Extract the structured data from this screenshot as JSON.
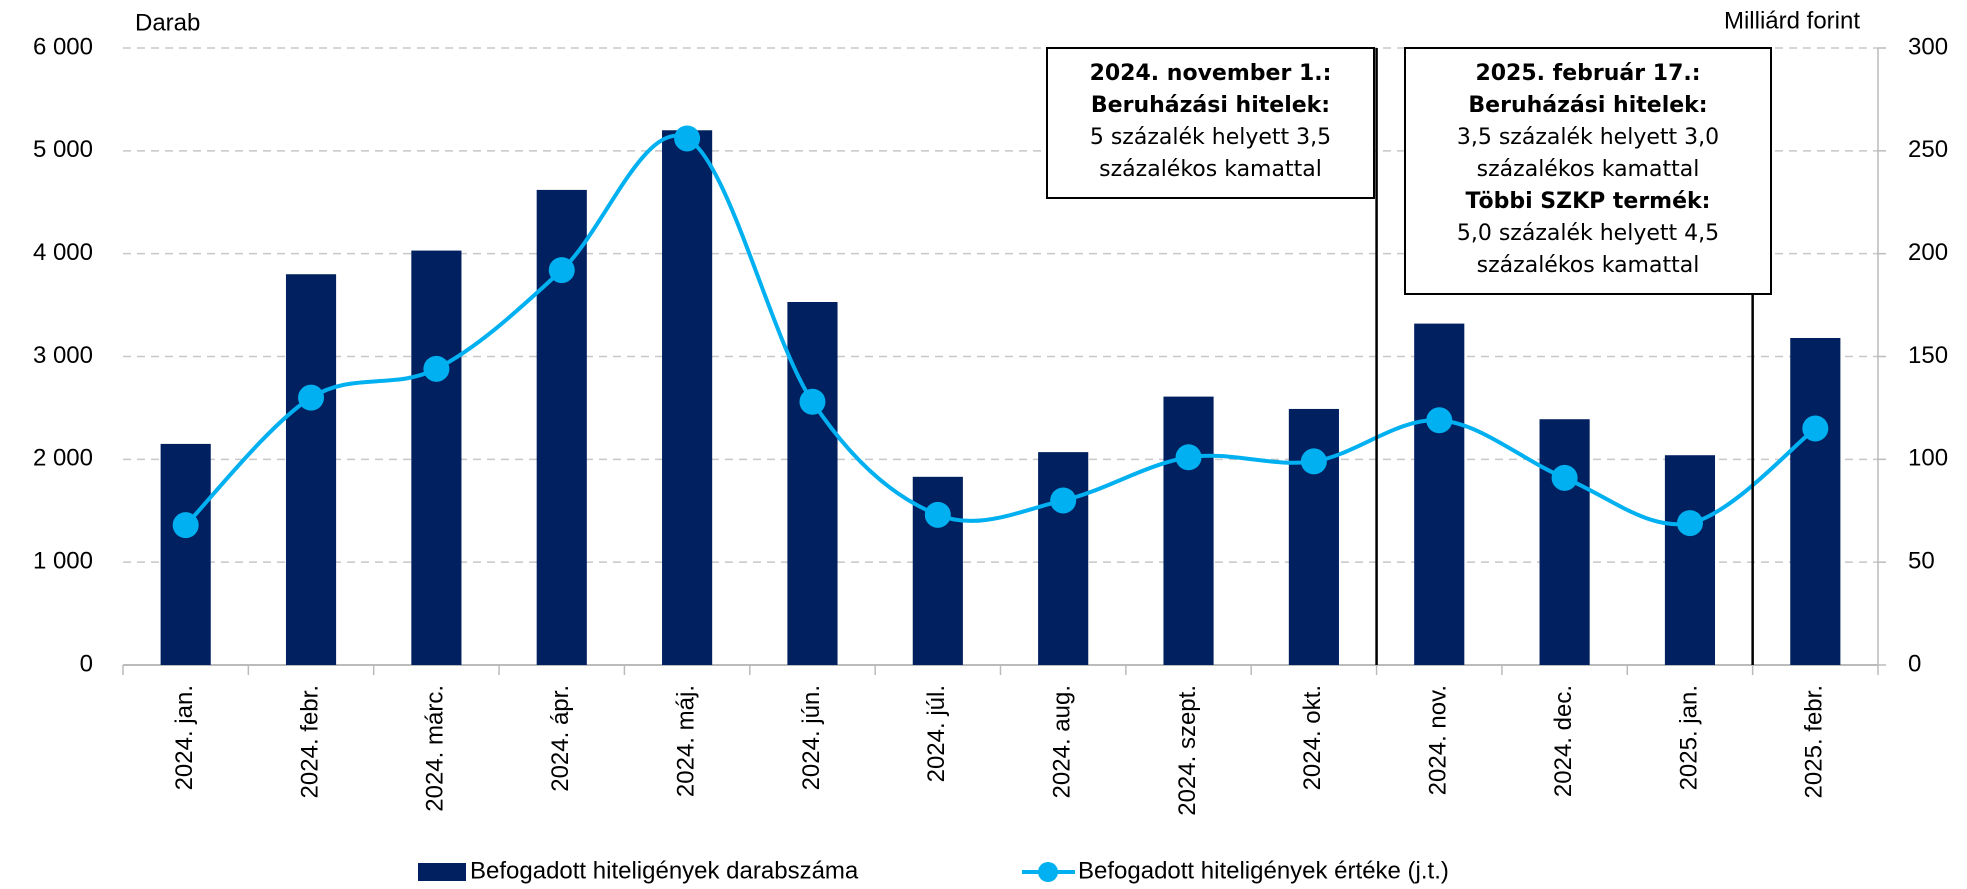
{
  "chart_data": {
    "type": "bar-line",
    "y_label": "Darab",
    "y2_label": "Milliárd forint",
    "categories": [
      "2024. jan.",
      "2024. febr.",
      "2024. márc.",
      "2024. ápr.",
      "2024. máj.",
      "2024. jún.",
      "2024. júl.",
      "2024. aug.",
      "2024. szept.",
      "2024. okt.",
      "2024. nov.",
      "2024. dec.",
      "2025. jan.",
      "2025. febr."
    ],
    "series": [
      {
        "name": "Befogadott hiteligények darabszáma",
        "type": "bar",
        "color": "#002060",
        "values": [
          2150,
          3800,
          4030,
          4620,
          5200,
          3530,
          1830,
          2070,
          2610,
          2490,
          3320,
          2390,
          2040,
          3180
        ]
      },
      {
        "name": "Befogadott hiteligények értéke (j.t.)",
        "type": "line",
        "axis": "y2",
        "color": "#00b0f0",
        "values": [
          68,
          130,
          144,
          192,
          256,
          128,
          73,
          80,
          101,
          99,
          119,
          91,
          69,
          115
        ]
      }
    ],
    "ylim": [
      0,
      6000
    ],
    "yticks": [
      0,
      {
        "value": 1000,
        "label": "1 000"
      },
      {
        "value": 2000,
        "label": "2 000"
      },
      {
        "value": 3000,
        "label": "3 000"
      },
      {
        "value": 4000,
        "label": "4 000"
      },
      {
        "value": 5000,
        "label": "5 000"
      },
      {
        "value": 6000,
        "label": "6 000"
      }
    ],
    "y2lim": [
      0,
      300
    ],
    "y2ticks": [
      0,
      50,
      100,
      150,
      200,
      250,
      300
    ],
    "grid": true,
    "legend": "bottom",
    "annotations": [
      {
        "lines": [
          {
            "text": "2024. november 1.:",
            "bold": true
          },
          {
            "text": "Beruházási hitelek:",
            "bold": true
          },
          {
            "text": "5 százalék helyett 3,5",
            "bold": false
          },
          {
            "text": "százalékos kamattal",
            "bold": false
          }
        ]
      },
      {
        "lines": [
          {
            "text": "2025. február 17.:",
            "bold": true
          },
          {
            "text": "Beruházási hitelek:",
            "bold": true
          },
          {
            "text": "3,5 százalék helyett 3,0",
            "bold": false
          },
          {
            "text": "százalékos kamattal",
            "bold": false
          },
          {
            "text": "Többi SZKP termék:",
            "bold": true
          },
          {
            "text": "5,0 százalék helyett 4,5",
            "bold": false
          },
          {
            "text": "százalékos kamattal",
            "bold": false
          }
        ]
      }
    ]
  }
}
